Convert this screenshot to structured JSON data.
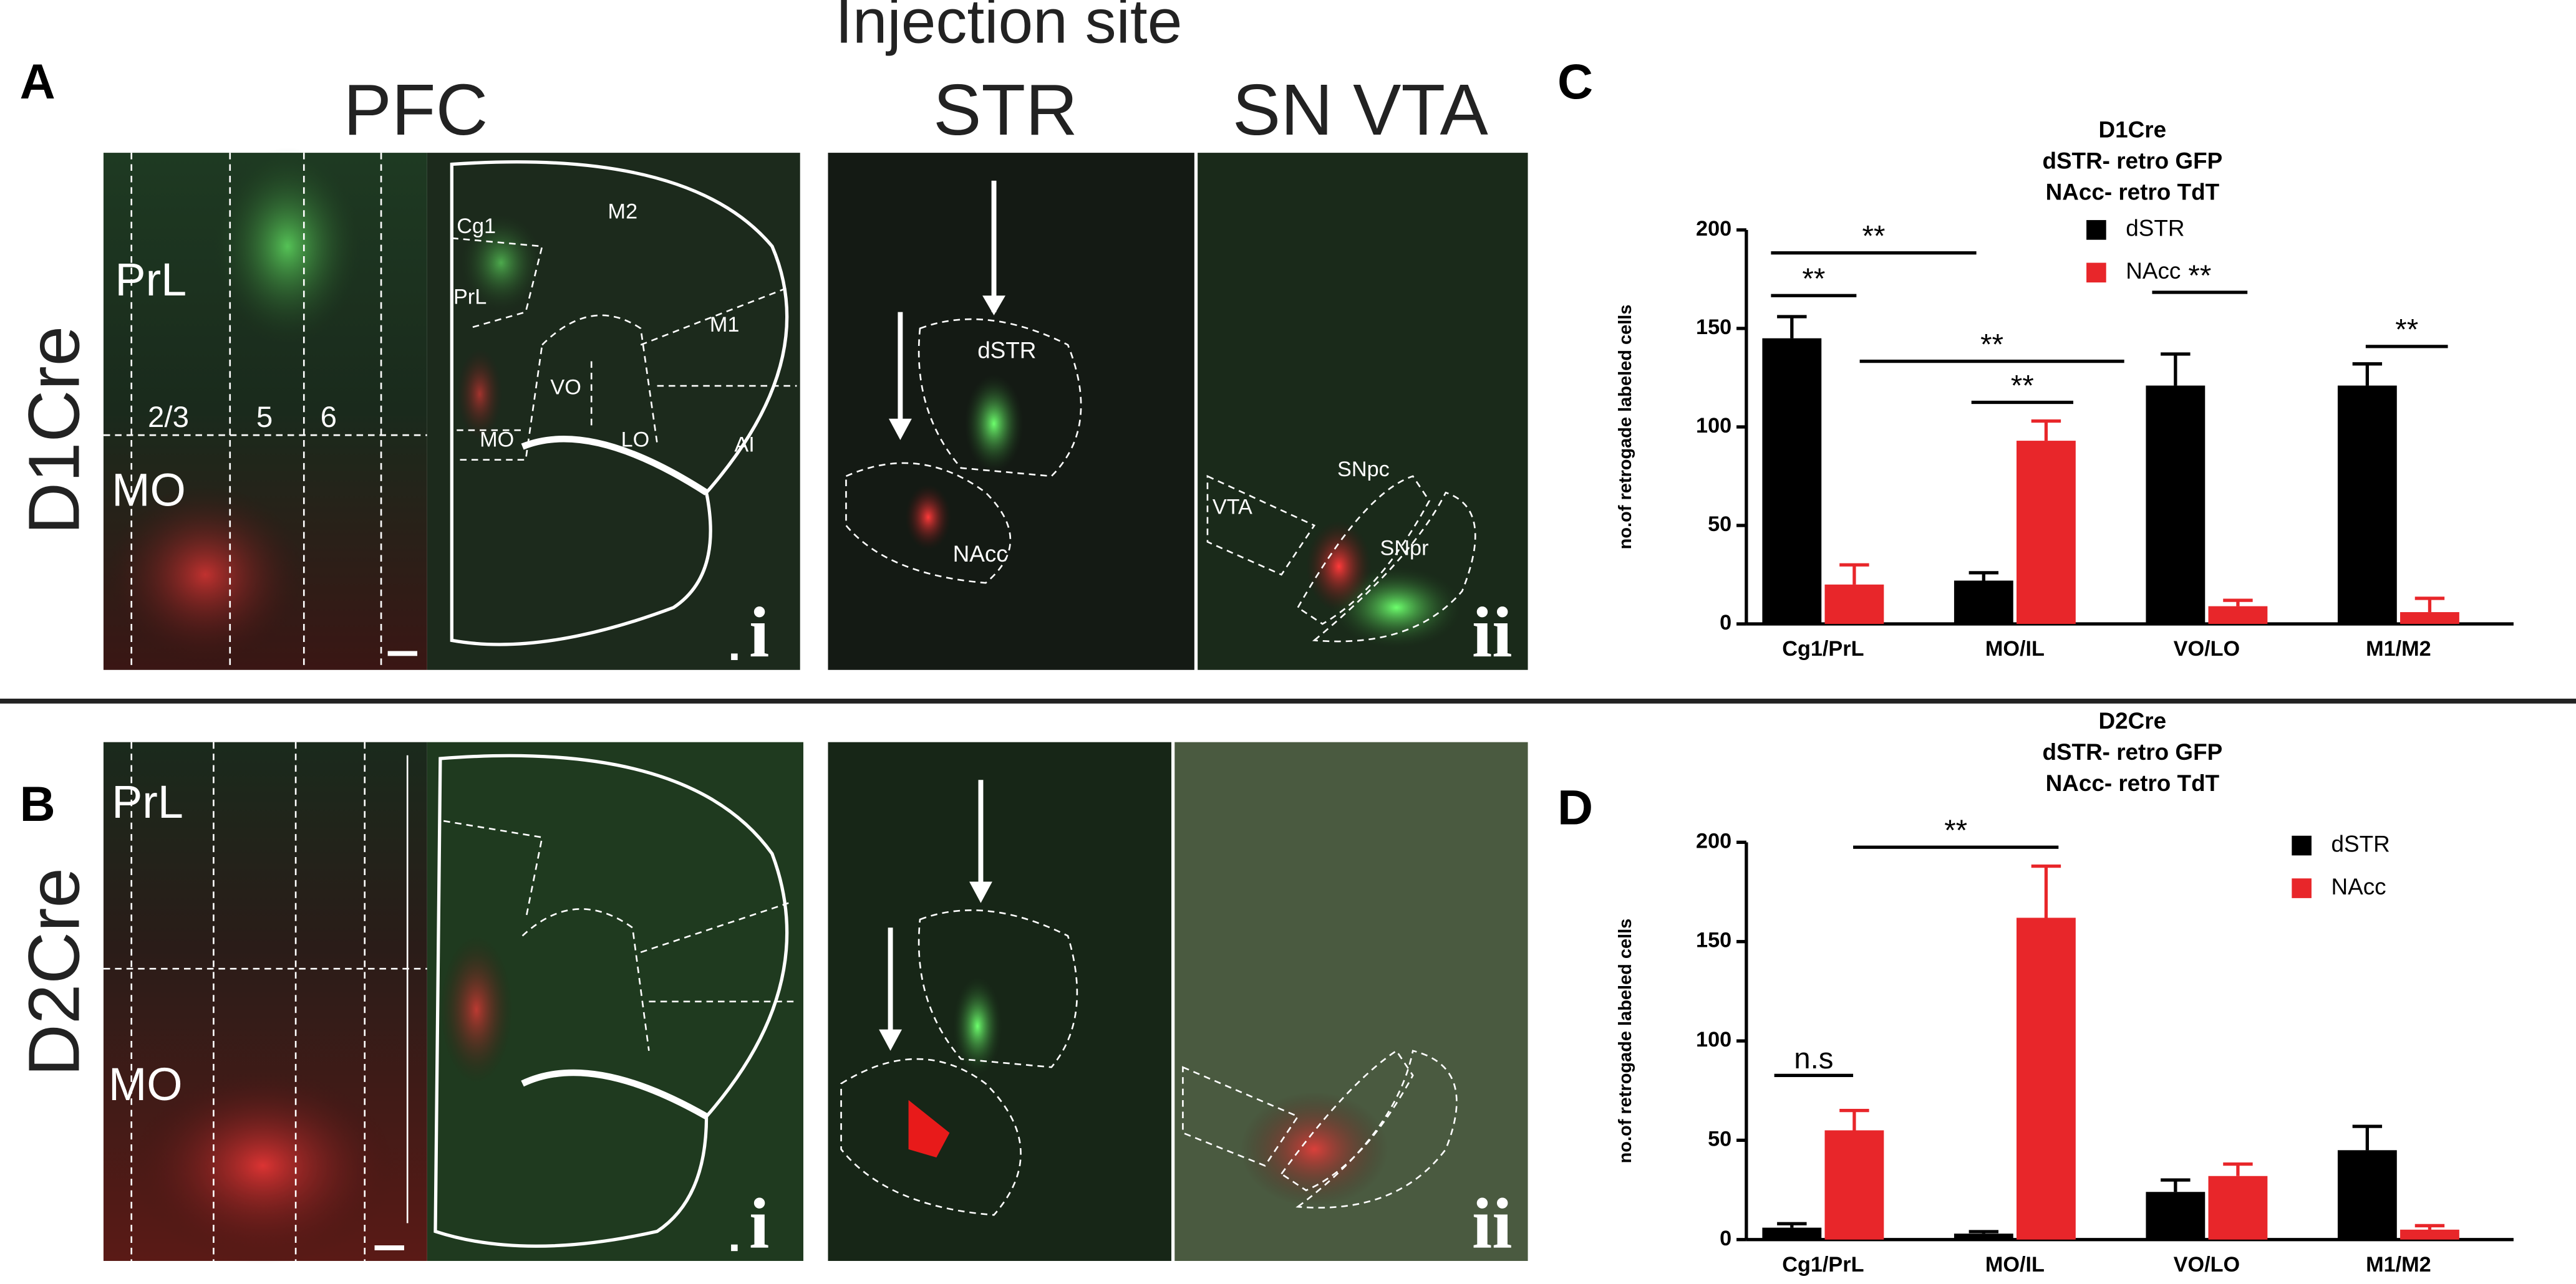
{
  "figure": {
    "header": "Injection site",
    "panel_labels": [
      "A",
      "B",
      "C",
      "D"
    ],
    "column_titles": [
      "PFC",
      "STR",
      "SN VTA"
    ],
    "row_titles": [
      "D1Cre",
      "D2Cre"
    ],
    "a_labels": {
      "prl": "PrL",
      "mo": "MO",
      "layers": [
        "2/3",
        "5",
        "6"
      ],
      "atlas": [
        "Cg1",
        "M2",
        "PrL",
        "M1",
        "VO",
        "MO",
        "LO",
        "AI"
      ],
      "i": "i",
      "str": [
        "dSTR",
        "NAcc"
      ],
      "sn": [
        "VTA",
        "SNpc",
        "SNpr"
      ],
      "ii": "ii"
    },
    "b_labels": {
      "prl": "PrL",
      "mo": "MO",
      "i": "i",
      "ii": "ii"
    }
  },
  "chart_data": [
    {
      "type": "bar",
      "title": "D1Cre",
      "subtitle": [
        "dSTR- retro GFP",
        "NAcc- retro TdT"
      ],
      "y_label": "no.of retrogade labeled cells",
      "categories": [
        "Cg1/PrL",
        "MO/IL",
        "VO/LO",
        "M1/M2"
      ],
      "series": [
        {
          "name": "dSTR",
          "color": "#000000",
          "values": [
            145,
            22,
            121,
            121
          ],
          "errors": [
            11,
            4,
            16,
            11
          ]
        },
        {
          "name": "NAcc",
          "color": "#e8262a",
          "values": [
            20,
            93,
            9,
            6
          ],
          "errors": [
            10,
            10,
            3,
            7
          ]
        }
      ],
      "ylim": [
        0,
        200
      ],
      "yticks": [
        0,
        50,
        100,
        150,
        200
      ],
      "legend": "upper right",
      "annotations": [
        "**",
        "**",
        "**",
        "**",
        "**",
        "**"
      ]
    },
    {
      "type": "bar",
      "title": "D2Cre",
      "subtitle": [
        "dSTR- retro GFP",
        "NAcc- retro TdT"
      ],
      "y_label": "no.of retrogade labeled cells",
      "categories": [
        "Cg1/PrL",
        "MO/IL",
        "VO/LO",
        "M1/M2"
      ],
      "series": [
        {
          "name": "dSTR",
          "color": "#000000",
          "values": [
            6,
            3,
            24,
            45
          ],
          "errors": [
            2,
            1,
            6,
            12
          ]
        },
        {
          "name": "NAcc",
          "color": "#e8262a",
          "values": [
            55,
            162,
            32,
            5
          ],
          "errors": [
            10,
            26,
            6,
            2
          ]
        }
      ],
      "ylim": [
        0,
        200
      ],
      "yticks": [
        0,
        50,
        100,
        150,
        200
      ],
      "legend": "upper right",
      "annotations": [
        "n.s",
        "**"
      ]
    }
  ]
}
